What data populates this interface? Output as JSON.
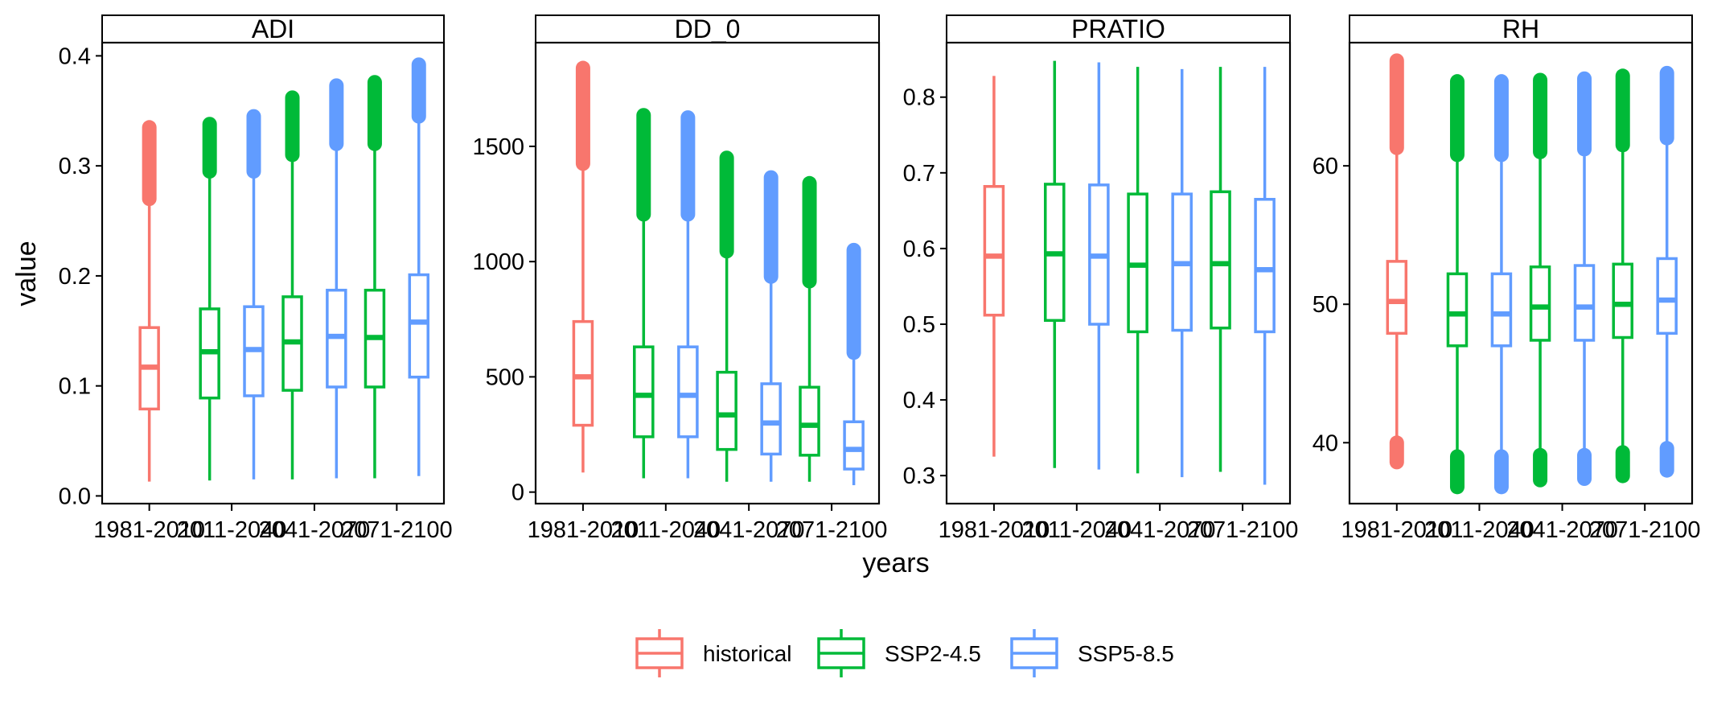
{
  "chart_data": {
    "type": "boxplot",
    "facet_layout": "single row, 4 panels, free y scales",
    "xlabel": "years",
    "ylabel": "value",
    "legend": {
      "position": "bottom",
      "entries": [
        {
          "name": "historical",
          "color": "#F8766D"
        },
        {
          "name": "SSP2-4.5",
          "color": "#00BA38"
        },
        {
          "name": "SSP5-8.5",
          "color": "#619CFF"
        }
      ]
    },
    "categories": [
      "1981-2010",
      "2011-2040",
      "2041-2070",
      "2071-2100"
    ],
    "category_tick_labels": [
      "1981-2010",
      "2011-2040",
      "2041-2070",
      "2071-2100"
    ],
    "panels": [
      {
        "title": "ADI",
        "ylim": [
          -0.007,
          0.412
        ],
        "yticks": [
          0.0,
          0.1,
          0.2,
          0.3,
          0.4
        ],
        "ytick_labels": [
          "0.0",
          "0.1",
          "0.2",
          "0.3",
          "0.4"
        ],
        "boxes": [
          {
            "category": "1981-2010",
            "series": "historical",
            "min": 0.013,
            "q1": 0.079,
            "median": 0.117,
            "q3": 0.153,
            "whisker_high": 0.265,
            "outliers": [
              0.27,
              0.335
            ]
          },
          {
            "category": "2011-2040",
            "series": "SSP2-4.5",
            "min": 0.014,
            "q1": 0.089,
            "median": 0.131,
            "q3": 0.17,
            "whisker_high": 0.29,
            "outliers": [
              0.295,
              0.338
            ]
          },
          {
            "category": "2011-2040",
            "series": "SSP5-8.5",
            "min": 0.015,
            "q1": 0.091,
            "median": 0.133,
            "q3": 0.172,
            "whisker_high": 0.29,
            "outliers": [
              0.295,
              0.345
            ]
          },
          {
            "category": "2041-2070",
            "series": "SSP2-4.5",
            "min": 0.015,
            "q1": 0.096,
            "median": 0.14,
            "q3": 0.181,
            "whisker_high": 0.305,
            "outliers": [
              0.31,
              0.362
            ]
          },
          {
            "category": "2041-2070",
            "series": "SSP5-8.5",
            "min": 0.016,
            "q1": 0.099,
            "median": 0.145,
            "q3": 0.187,
            "whisker_high": 0.315,
            "outliers": [
              0.32,
              0.373
            ]
          },
          {
            "category": "2071-2100",
            "series": "SSP2-4.5",
            "min": 0.016,
            "q1": 0.099,
            "median": 0.144,
            "q3": 0.187,
            "whisker_high": 0.315,
            "outliers": [
              0.32,
              0.376
            ]
          },
          {
            "category": "2071-2100",
            "series": "SSP5-8.5",
            "min": 0.018,
            "q1": 0.108,
            "median": 0.158,
            "q3": 0.201,
            "whisker_high": 0.34,
            "outliers": [
              0.345,
              0.392
            ]
          }
        ]
      },
      {
        "title": "DD_0",
        "ylim": [
          -50,
          1950
        ],
        "yticks": [
          0,
          500,
          1000,
          1500
        ],
        "ytick_labels": [
          "0",
          "500",
          "1000",
          "1500"
        ],
        "boxes": [
          {
            "category": "1981-2010",
            "series": "historical",
            "min": 85,
            "q1": 290,
            "median": 500,
            "q3": 740,
            "whisker_high": 1420,
            "outliers": [
              1425,
              1840
            ]
          },
          {
            "category": "2011-2040",
            "series": "SSP2-4.5",
            "min": 60,
            "q1": 240,
            "median": 420,
            "q3": 630,
            "whisker_high": 1200,
            "outliers": [
              1205,
              1635
            ]
          },
          {
            "category": "2011-2040",
            "series": "SSP5-8.5",
            "min": 60,
            "q1": 240,
            "median": 420,
            "q3": 630,
            "whisker_high": 1200,
            "outliers": [
              1205,
              1625
            ]
          },
          {
            "category": "2041-2070",
            "series": "SSP2-4.5",
            "min": 45,
            "q1": 185,
            "median": 335,
            "q3": 520,
            "whisker_high": 1040,
            "outliers": [
              1045,
              1450
            ]
          },
          {
            "category": "2041-2070",
            "series": "SSP5-8.5",
            "min": 45,
            "q1": 165,
            "median": 300,
            "q3": 470,
            "whisker_high": 930,
            "outliers": [
              935,
              1365
            ]
          },
          {
            "category": "2071-2100",
            "series": "SSP2-4.5",
            "min": 45,
            "q1": 160,
            "median": 290,
            "q3": 455,
            "whisker_high": 910,
            "outliers": [
              915,
              1340
            ]
          },
          {
            "category": "2071-2100",
            "series": "SSP5-8.5",
            "min": 30,
            "q1": 100,
            "median": 185,
            "q3": 305,
            "whisker_high": 600,
            "outliers": [
              605,
              1050
            ]
          }
        ]
      },
      {
        "title": "PRATIO",
        "ylim": [
          0.263,
          0.872
        ],
        "yticks": [
          0.3,
          0.4,
          0.5,
          0.6,
          0.7,
          0.8
        ],
        "ytick_labels": [
          "0.3",
          "0.4",
          "0.5",
          "0.6",
          "0.7",
          "0.8"
        ],
        "boxes": [
          {
            "category": "1981-2010",
            "series": "historical",
            "min": 0.325,
            "q1": 0.512,
            "median": 0.59,
            "q3": 0.682,
            "whisker_high": 0.828,
            "outliers": []
          },
          {
            "category": "2011-2040",
            "series": "SSP2-4.5",
            "min": 0.31,
            "q1": 0.505,
            "median": 0.593,
            "q3": 0.685,
            "whisker_high": 0.848,
            "outliers": []
          },
          {
            "category": "2011-2040",
            "series": "SSP5-8.5",
            "min": 0.308,
            "q1": 0.5,
            "median": 0.59,
            "q3": 0.684,
            "whisker_high": 0.846,
            "outliers": []
          },
          {
            "category": "2041-2070",
            "series": "SSP2-4.5",
            "min": 0.303,
            "q1": 0.49,
            "median": 0.578,
            "q3": 0.672,
            "whisker_high": 0.84,
            "outliers": []
          },
          {
            "category": "2041-2070",
            "series": "SSP5-8.5",
            "min": 0.298,
            "q1": 0.492,
            "median": 0.58,
            "q3": 0.672,
            "whisker_high": 0.837,
            "outliers": []
          },
          {
            "category": "2071-2100",
            "series": "SSP2-4.5",
            "min": 0.305,
            "q1": 0.495,
            "median": 0.58,
            "q3": 0.675,
            "whisker_high": 0.84,
            "outliers": []
          },
          {
            "category": "2071-2100",
            "series": "SSP5-8.5",
            "min": 0.288,
            "q1": 0.49,
            "median": 0.572,
            "q3": 0.665,
            "whisker_high": 0.84,
            "outliers": []
          }
        ]
      },
      {
        "title": "RH",
        "ylim": [
          35.6,
          68.9
        ],
        "yticks": [
          40,
          50,
          60
        ],
        "ytick_labels": [
          "40",
          "50",
          "60"
        ],
        "boxes": [
          {
            "category": "1981-2010",
            "series": "historical",
            "min": 40.5,
            "q1": 47.9,
            "median": 50.2,
            "q3": 53.1,
            "whisker_high": 60.9,
            "outliers": [
              38.6,
              40.0,
              61.3,
              67.6
            ]
          },
          {
            "category": "2011-2040",
            "series": "SSP2-4.5",
            "min": 39.4,
            "q1": 47.0,
            "median": 49.3,
            "q3": 52.2,
            "whisker_high": 60.3,
            "outliers": [
              36.8,
              39.0,
              60.8,
              66.1
            ]
          },
          {
            "category": "2011-2040",
            "series": "SSP5-8.5",
            "min": 39.4,
            "q1": 47.0,
            "median": 49.3,
            "q3": 52.2,
            "whisker_high": 60.3,
            "outliers": [
              36.8,
              39.0,
              60.8,
              66.1
            ]
          },
          {
            "category": "2041-2070",
            "series": "SSP2-4.5",
            "min": 39.5,
            "q1": 47.4,
            "median": 49.8,
            "q3": 52.7,
            "whisker_high": 60.6,
            "outliers": [
              37.3,
              39.1,
              61.0,
              66.2
            ]
          },
          {
            "category": "2041-2070",
            "series": "SSP5-8.5",
            "min": 39.5,
            "q1": 47.4,
            "median": 49.8,
            "q3": 52.8,
            "whisker_high": 60.7,
            "outliers": [
              37.4,
              39.1,
              61.2,
              66.3
            ]
          },
          {
            "category": "2071-2100",
            "series": "SSP2-4.5",
            "min": 39.7,
            "q1": 47.6,
            "median": 50.0,
            "q3": 52.9,
            "whisker_high": 61.0,
            "outliers": [
              37.6,
              39.3,
              61.5,
              66.5
            ]
          },
          {
            "category": "2071-2100",
            "series": "SSP5-8.5",
            "min": 40.0,
            "q1": 47.9,
            "median": 50.3,
            "q3": 53.3,
            "whisker_high": 61.6,
            "outliers": [
              38.0,
              39.6,
              62.0,
              66.7
            ]
          }
        ]
      }
    ]
  }
}
